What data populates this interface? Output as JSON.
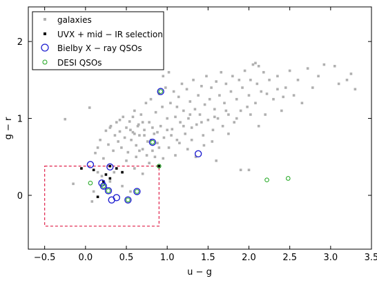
{
  "chart_data": {
    "type": "scatter",
    "xlabel": "u − g",
    "ylabel": "g − r",
    "xlim": [
      -0.7,
      3.5
    ],
    "ylim": [
      -0.7,
      2.45
    ],
    "x_ticks": [
      -0.5,
      0.0,
      0.5,
      1.0,
      1.5,
      2.0,
      2.5,
      3.0,
      3.5
    ],
    "x_tick_labels": [
      "−0.5",
      "0.0",
      "0.5",
      "1.0",
      "1.5",
      "2.0",
      "2.5",
      "3.0",
      "3.5"
    ],
    "y_ticks": [
      0,
      1,
      2
    ],
    "y_tick_labels": [
      "0",
      "1",
      "2"
    ],
    "grid": false,
    "legend_position": "top-left",
    "colors": {
      "galaxies": "#b0b0b0",
      "uvx": "#000000",
      "bielby": "#1f1fd0",
      "desi": "#1aa51a",
      "selection_box": "#e0204a"
    },
    "series": [
      {
        "name": "galaxies",
        "marker": "square",
        "points": [
          [
            -0.25,
            0.99
          ],
          [
            0.05,
            1.14
          ],
          [
            0.12,
            0.55
          ],
          [
            0.15,
            0.62
          ],
          [
            0.18,
            0.72
          ],
          [
            0.22,
            0.48
          ],
          [
            0.25,
            0.84
          ],
          [
            0.28,
            0.66
          ],
          [
            0.31,
            0.9
          ],
          [
            0.34,
            0.58
          ],
          [
            0.36,
            0.78
          ],
          [
            0.38,
            0.95
          ],
          [
            0.4,
            0.7
          ],
          [
            0.42,
            0.83
          ],
          [
            0.44,
            0.62
          ],
          [
            0.46,
            1.02
          ],
          [
            0.48,
            0.75
          ],
          [
            0.5,
            0.88
          ],
          [
            0.52,
            0.56
          ],
          [
            0.54,
            0.96
          ],
          [
            0.56,
            0.72
          ],
          [
            0.58,
            0.82
          ],
          [
            0.6,
            1.1
          ],
          [
            0.62,
            0.65
          ],
          [
            0.64,
            0.9
          ],
          [
            0.66,
            0.78
          ],
          [
            0.68,
            1.05
          ],
          [
            0.7,
            0.6
          ],
          [
            0.72,
            0.85
          ],
          [
            0.74,
            1.2
          ],
          [
            0.76,
            0.7
          ],
          [
            0.78,
            0.95
          ],
          [
            0.8,
            1.25
          ],
          [
            0.82,
            0.58
          ],
          [
            0.84,
            0.8
          ],
          [
            0.86,
            1.08
          ],
          [
            0.88,
            0.68
          ],
          [
            0.9,
            1.32
          ],
          [
            0.92,
            0.9
          ],
          [
            0.94,
            1.15
          ],
          [
            0.96,
            0.75
          ],
          [
            0.98,
            1.4
          ],
          [
            1.0,
            1.0
          ],
          [
            1.02,
            0.62
          ],
          [
            1.04,
            1.2
          ],
          [
            1.06,
            0.86
          ],
          [
            1.08,
            1.35
          ],
          [
            1.1,
            1.02
          ],
          [
            1.12,
            0.72
          ],
          [
            1.14,
            1.28
          ],
          [
            1.16,
            0.95
          ],
          [
            1.18,
            1.45
          ],
          [
            1.2,
            1.1
          ],
          [
            1.22,
            0.8
          ],
          [
            1.24,
            1.38
          ],
          [
            1.26,
            1.0
          ],
          [
            1.28,
            1.22
          ],
          [
            1.3,
            0.88
          ],
          [
            1.32,
            1.5
          ],
          [
            1.34,
            1.12
          ],
          [
            1.36,
            0.92
          ],
          [
            1.38,
            1.3
          ],
          [
            1.4,
            1.05
          ],
          [
            1.42,
            1.42
          ],
          [
            1.44,
            0.78
          ],
          [
            1.46,
            1.18
          ],
          [
            1.48,
            1.55
          ],
          [
            1.5,
            0.98
          ],
          [
            1.52,
            1.25
          ],
          [
            1.54,
            1.4
          ],
          [
            1.56,
            0.85
          ],
          [
            1.58,
            1.12
          ],
          [
            1.6,
            1.48
          ],
          [
            1.62,
            1.0
          ],
          [
            1.64,
            1.3
          ],
          [
            1.66,
            1.6
          ],
          [
            1.68,
            0.9
          ],
          [
            1.7,
            1.2
          ],
          [
            1.72,
            1.45
          ],
          [
            1.75,
            1.05
          ],
          [
            1.78,
            1.35
          ],
          [
            1.8,
            1.55
          ],
          [
            1.82,
            0.95
          ],
          [
            1.85,
            1.25
          ],
          [
            1.88,
            1.5
          ],
          [
            1.9,
            1.1
          ],
          [
            1.92,
            1.4
          ],
          [
            1.95,
            1.62
          ],
          [
            1.98,
            1.15
          ],
          [
            2.0,
            1.3
          ],
          [
            2.02,
            1.5
          ],
          [
            2.05,
            1.7
          ],
          [
            2.08,
            1.2
          ],
          [
            2.1,
            1.45
          ],
          [
            2.12,
            0.9
          ],
          [
            2.15,
            1.35
          ],
          [
            2.18,
            1.6
          ],
          [
            2.2,
            1.05
          ],
          [
            2.25,
            1.5
          ],
          [
            2.3,
            1.25
          ],
          [
            2.35,
            1.55
          ],
          [
            2.4,
            1.1
          ],
          [
            2.45,
            1.4
          ],
          [
            2.5,
            1.62
          ],
          [
            2.55,
            1.3
          ],
          [
            2.6,
            1.5
          ],
          [
            2.65,
            1.2
          ],
          [
            2.72,
            1.65
          ],
          [
            2.78,
            1.4
          ],
          [
            2.85,
            1.55
          ],
          [
            2.92,
            1.7
          ],
          [
            3.05,
            1.68
          ],
          [
            3.1,
            1.45
          ],
          [
            3.2,
            1.5
          ],
          [
            3.25,
            1.58
          ],
          [
            3.3,
            1.38
          ],
          [
            2.08,
            1.72
          ],
          [
            2.12,
            1.68
          ],
          [
            2.42,
            1.28
          ],
          [
            1.02,
            1.6
          ],
          [
            0.95,
            1.55
          ],
          [
            0.15,
            0.3
          ],
          [
            0.2,
            0.25
          ],
          [
            0.3,
            0.18
          ],
          [
            0.45,
            0.12
          ],
          [
            0.6,
            0.35
          ],
          [
            0.1,
            0.05
          ],
          [
            0.35,
            0.3
          ],
          [
            0.55,
            0.05
          ],
          [
            0.7,
            0.28
          ],
          [
            -0.15,
            0.15
          ],
          [
            0.08,
            -0.08
          ],
          [
            0.5,
            0.45
          ],
          [
            0.62,
            0.5
          ],
          [
            0.78,
            0.42
          ],
          [
            0.85,
            0.5
          ],
          [
            0.95,
            0.48
          ],
          [
            1.1,
            0.52
          ],
          [
            1.25,
            0.6
          ],
          [
            1.35,
            0.5
          ],
          [
            1.6,
            0.45
          ],
          [
            1.9,
            0.33
          ],
          [
            2.0,
            0.33
          ],
          [
            0.72,
            0.78
          ],
          [
            0.88,
            0.82
          ],
          [
            1.15,
            0.68
          ],
          [
            1.3,
            0.72
          ],
          [
            1.45,
            0.65
          ],
          [
            1.55,
            0.7
          ],
          [
            1.75,
            0.8
          ],
          [
            0.3,
            0.88
          ],
          [
            0.42,
            0.98
          ],
          [
            0.58,
            1.02
          ],
          [
            0.66,
            0.58
          ],
          [
            0.75,
            0.52
          ],
          [
            0.82,
            0.88
          ],
          [
            1.05,
            0.78
          ],
          [
            1.2,
            0.9
          ],
          [
            0.9,
            0.62
          ],
          [
            1.0,
            0.85
          ],
          [
            0.65,
            0.92
          ],
          [
            0.55,
            0.85
          ],
          [
            1.12,
            1.15
          ],
          [
            1.28,
            1.05
          ],
          [
            1.42,
            0.95
          ],
          [
            1.58,
            1.02
          ],
          [
            1.72,
            1.1
          ],
          [
            1.85,
            1.0
          ],
          [
            2.02,
            1.05
          ],
          [
            2.22,
            1.32
          ],
          [
            2.35,
            1.38
          ],
          [
            0.8,
            0.72
          ],
          [
            0.7,
            0.95
          ],
          [
            0.6,
            0.8
          ]
        ]
      },
      {
        "name": "UVX + mid − IR selection",
        "marker": "filled-square",
        "points": [
          [
            -0.05,
            0.35
          ],
          [
            0.1,
            0.33
          ],
          [
            0.22,
            0.18
          ],
          [
            0.25,
            0.27
          ],
          [
            0.3,
            0.38
          ],
          [
            0.38,
            0.35
          ],
          [
            0.45,
            0.3
          ],
          [
            0.9,
            0.38
          ],
          [
            0.15,
            -0.02
          ],
          [
            0.3,
            0.22
          ]
        ]
      },
      {
        "name": "Bielby X − ray QSOs",
        "marker": "open-circle",
        "points": [
          [
            0.06,
            0.4
          ],
          [
            0.3,
            0.37
          ],
          [
            0.2,
            0.16
          ],
          [
            0.22,
            0.12
          ],
          [
            0.28,
            0.06
          ],
          [
            0.32,
            -0.06
          ],
          [
            0.38,
            -0.03
          ],
          [
            0.52,
            -0.06
          ],
          [
            0.63,
            0.05
          ],
          [
            0.82,
            0.69
          ],
          [
            0.92,
            1.35
          ],
          [
            1.38,
            0.54
          ]
        ]
      },
      {
        "name": "DESI QSOs",
        "marker": "open-circle",
        "points": [
          [
            0.06,
            0.16
          ],
          [
            0.22,
            0.12
          ],
          [
            0.28,
            0.06
          ],
          [
            0.52,
            -0.06
          ],
          [
            0.63,
            0.05
          ],
          [
            0.82,
            0.69
          ],
          [
            0.92,
            1.35
          ],
          [
            0.9,
            0.38
          ],
          [
            2.22,
            0.2
          ],
          [
            2.48,
            0.22
          ]
        ]
      }
    ],
    "selection_box": {
      "x0": -0.5,
      "x1": 0.9,
      "y0": -0.4,
      "y1": 0.38
    }
  }
}
